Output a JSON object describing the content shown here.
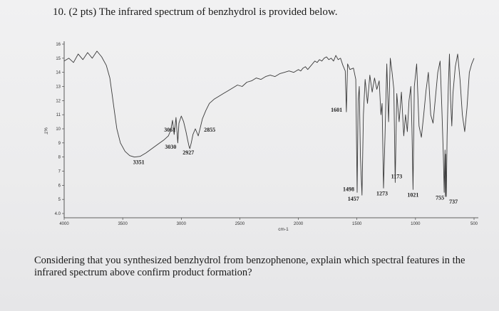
{
  "question": {
    "title": "10. (2 pts) The infrared spectrum of benzhydrol is provided below.",
    "prompt": "Considering that you synthesized benzhydrol from benzophenone, explain which spectral features in the infrared spectrum above confirm product formation?"
  },
  "chart_data": {
    "type": "line",
    "xlabel": "cm-1",
    "ylabel": "%T",
    "xlim": [
      4000,
      500
    ],
    "ylim": [
      4,
      16
    ],
    "x_ticks": [
      {
        "value": 4000,
        "label": "4000"
      },
      {
        "value": 3500,
        "label": "3500"
      },
      {
        "value": 3000,
        "label": "3000"
      },
      {
        "value": 2500,
        "label": "2500"
      },
      {
        "value": 2000,
        "label": "2000"
      },
      {
        "value": 1500,
        "label": "1500"
      },
      {
        "value": 1000,
        "label": "1000"
      },
      {
        "value": 500,
        "label": "500"
      }
    ],
    "y_ticks": [
      {
        "value": 16,
        "label": "16"
      },
      {
        "value": 15,
        "label": "15"
      },
      {
        "value": 14,
        "label": "14"
      },
      {
        "value": 13,
        "label": "13"
      },
      {
        "value": 12,
        "label": "12"
      },
      {
        "value": 11,
        "label": "11"
      },
      {
        "value": 10,
        "label": "10"
      },
      {
        "value": 9,
        "label": "9"
      },
      {
        "value": 8,
        "label": "8"
      },
      {
        "value": 7,
        "label": "7"
      },
      {
        "value": 6,
        "label": "6"
      },
      {
        "value": 5,
        "label": "5"
      },
      {
        "value": 4,
        "label": "4.0"
      }
    ],
    "series": [
      {
        "x": [
          4000,
          3960,
          3920,
          3880,
          3840,
          3800,
          3760,
          3720,
          3680,
          3640,
          3610,
          3590,
          3570,
          3550,
          3520,
          3480,
          3440,
          3400,
          3351,
          3300,
          3250,
          3200,
          3150,
          3110,
          3090,
          3075,
          3061,
          3045,
          3030,
          3020,
          3000,
          2980,
          2960,
          2945,
          2935,
          2927,
          2915,
          2900,
          2880,
          2865,
          2855,
          2840,
          2820,
          2790,
          2760,
          2720,
          2680,
          2640,
          2600,
          2560,
          2520,
          2480,
          2440,
          2400,
          2360,
          2320,
          2280,
          2240,
          2200,
          2160,
          2120,
          2080,
          2040,
          2000,
          1980,
          1960,
          1940,
          1920,
          1900,
          1880,
          1860,
          1840,
          1820,
          1800,
          1780,
          1760,
          1740,
          1720,
          1700,
          1680,
          1660,
          1640,
          1620,
          1600,
          1590,
          1580,
          1560,
          1530,
          1510,
          1498,
          1490,
          1480,
          1470,
          1457,
          1445,
          1430,
          1410,
          1390,
          1370,
          1350,
          1330,
          1310,
          1295,
          1285,
          1273,
          1260,
          1245,
          1230,
          1215,
          1200,
          1185,
          1173,
          1160,
          1140,
          1120,
          1100,
          1085,
          1070,
          1055,
          1040,
          1030,
          1021,
          1010,
          990,
          970,
          950,
          930,
          910,
          890,
          870,
          850,
          830,
          810,
          790,
          775,
          762,
          755,
          748,
          745,
          742,
          738,
          737,
          730,
          720,
          710,
          700,
          690,
          680,
          660,
          640,
          620,
          600,
          580,
          560,
          540,
          520,
          500
        ],
        "y": [
          14.8,
          15.0,
          14.7,
          15.3,
          14.9,
          15.4,
          15.0,
          15.5,
          15.1,
          14.5,
          13.6,
          12.4,
          11.2,
          10.0,
          9.0,
          8.4,
          8.1,
          8.0,
          8.05,
          8.3,
          8.6,
          8.9,
          9.2,
          9.5,
          9.9,
          10.6,
          9.6,
          10.8,
          9.0,
          10.4,
          10.9,
          10.5,
          9.8,
          9.2,
          8.8,
          8.6,
          9.0,
          9.6,
          10.0,
          9.7,
          9.5,
          10.0,
          10.7,
          11.3,
          11.8,
          12.1,
          12.3,
          12.5,
          12.7,
          12.9,
          13.1,
          13.0,
          13.3,
          13.4,
          13.6,
          13.5,
          13.7,
          13.8,
          13.7,
          13.9,
          14.0,
          14.1,
          14.0,
          14.2,
          14.1,
          14.3,
          14.4,
          14.2,
          14.4,
          14.6,
          14.8,
          14.7,
          14.9,
          14.8,
          15.0,
          15.1,
          14.9,
          15.0,
          14.8,
          15.2,
          14.9,
          15.0,
          14.5,
          14.1,
          11.2,
          14.6,
          14.2,
          14.3,
          13.5,
          5.5,
          12.0,
          13.0,
          8.0,
          5.3,
          11.0,
          13.5,
          11.8,
          13.8,
          12.6,
          13.6,
          12.8,
          13.4,
          11.0,
          11.8,
          5.8,
          9.5,
          14.6,
          10.5,
          15.0,
          14.0,
          12.8,
          6.2,
          12.5,
          10.5,
          12.6,
          9.5,
          11.0,
          9.8,
          12.0,
          13.0,
          10.0,
          5.7,
          13.0,
          14.6,
          10.2,
          9.4,
          11.0,
          12.7,
          14.0,
          11.0,
          10.4,
          12.2,
          14.0,
          14.8,
          11.5,
          8.0,
          5.5,
          8.5,
          5.2,
          8.2,
          5.4,
          5.2,
          9.5,
          13.0,
          15.3,
          12.0,
          10.2,
          12.5,
          14.4,
          15.3,
          13.5,
          11.0,
          9.8,
          11.5,
          14.0,
          14.6,
          15.0
        ]
      }
    ],
    "annotations": [
      {
        "x": 3351,
        "y": 8.0,
        "label": "3351"
      },
      {
        "x": 3061,
        "y": 9.6,
        "label": "3061"
      },
      {
        "x": 3030,
        "y": 9.0,
        "label": "3030"
      },
      {
        "x": 2927,
        "y": 8.6,
        "label": "2927"
      },
      {
        "x": 2855,
        "y": 9.5,
        "label": "2855"
      },
      {
        "x": 1601,
        "y": 11.2,
        "label": "1601"
      },
      {
        "x": 1498,
        "y": 5.5,
        "label": "1498"
      },
      {
        "x": 1457,
        "y": 5.3,
        "label": "1457"
      },
      {
        "x": 1273,
        "y": 5.8,
        "label": "1273"
      },
      {
        "x": 1173,
        "y": 6.2,
        "label": "1173"
      },
      {
        "x": 1021,
        "y": 5.7,
        "label": "1021"
      },
      {
        "x": 755,
        "y": 5.5,
        "label": "755"
      },
      {
        "x": 737,
        "y": 5.2,
        "label": "737"
      }
    ],
    "grid": false,
    "legend": "none"
  }
}
